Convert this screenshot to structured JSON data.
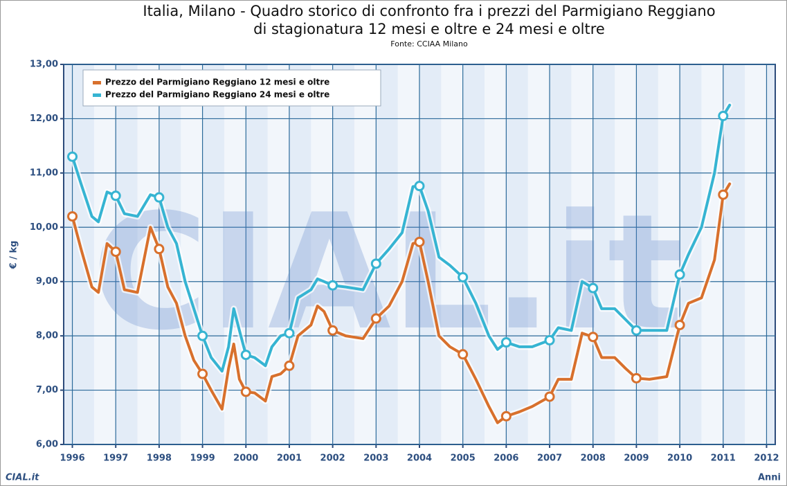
{
  "chart_data": {
    "type": "line",
    "title": [
      "Italia, Milano - Quadro storico di confronto fra i prezzi del Parmigiano Reggiano",
      "di stagionatura 12 mesi e oltre e 24 mesi e oltre"
    ],
    "subtitle": "Fonte: CCIAA Milano",
    "y_label": "€ / kg",
    "x_label": "Anni",
    "logo": "CIAL.it",
    "legend": "top-left",
    "grid": true,
    "xlim": [
      1995.8,
      2012.2
    ],
    "xticks": [
      1996,
      1997,
      1998,
      1999,
      2000,
      2001,
      2002,
      2003,
      2004,
      2005,
      2006,
      2007,
      2008,
      2009,
      2010,
      2011,
      2012
    ],
    "ylim": [
      6,
      13
    ],
    "yticks": [
      {
        "value": 6,
        "label": "6,00"
      },
      {
        "value": 7,
        "label": "7,00"
      },
      {
        "value": 8,
        "label": "8,00"
      },
      {
        "value": 9,
        "label": "9,00"
      },
      {
        "value": 10,
        "label": "10,00"
      },
      {
        "value": 11,
        "label": "11,00"
      },
      {
        "value": 12,
        "label": "12,00"
      },
      {
        "value": 13,
        "label": "13,00"
      }
    ],
    "x": [
      1996.0,
      1996.2,
      1996.45,
      1996.6,
      1996.8,
      1997.0,
      1997.2,
      1997.5,
      1997.8,
      1998.0,
      1998.2,
      1998.4,
      1998.6,
      1998.8,
      1999.0,
      1999.2,
      1999.45,
      1999.6,
      1999.72,
      1999.85,
      2000.0,
      2000.2,
      2000.45,
      2000.6,
      2000.8,
      2001.0,
      2001.2,
      2001.5,
      2001.65,
      2001.8,
      2002.0,
      2002.3,
      2002.7,
      2003.0,
      2003.3,
      2003.6,
      2003.85,
      2004.0,
      2004.2,
      2004.45,
      2004.7,
      2005.0,
      2005.3,
      2005.6,
      2005.8,
      2006.0,
      2006.3,
      2006.6,
      2007.0,
      2007.2,
      2007.5,
      2007.75,
      2008.0,
      2008.2,
      2008.5,
      2008.75,
      2009.0,
      2009.3,
      2009.7,
      2010.0,
      2010.2,
      2010.5,
      2010.8,
      2011.0,
      2011.15
    ],
    "series": [
      {
        "name": "Prezzo del Parmigiano Reggiano 12 mesi e oltre",
        "color": "#d8702c",
        "values": [
          10.2,
          9.6,
          8.9,
          8.8,
          9.7,
          9.55,
          8.85,
          8.8,
          10.0,
          9.6,
          8.9,
          8.6,
          8.0,
          7.55,
          7.3,
          7.0,
          6.65,
          7.4,
          7.85,
          7.2,
          6.97,
          6.95,
          6.8,
          7.25,
          7.3,
          7.45,
          8.0,
          8.2,
          8.55,
          8.45,
          8.1,
          8.0,
          7.95,
          8.32,
          8.55,
          9.0,
          9.7,
          9.73,
          9.0,
          8.0,
          7.8,
          7.66,
          7.2,
          6.7,
          6.4,
          6.52,
          6.6,
          6.7,
          6.88,
          7.2,
          7.2,
          8.05,
          7.98,
          7.6,
          7.6,
          7.4,
          7.22,
          7.2,
          7.25,
          8.2,
          8.6,
          8.7,
          9.4,
          10.6,
          10.8
        ]
      },
      {
        "name": "Prezzo del Parmigiano Reggiano 24 mesi e oltre",
        "color": "#36b4d2",
        "values": [
          11.3,
          10.8,
          10.2,
          10.1,
          10.65,
          10.58,
          10.25,
          10.2,
          10.6,
          10.55,
          10.0,
          9.7,
          9.0,
          8.5,
          8.0,
          7.6,
          7.35,
          7.8,
          8.5,
          8.1,
          7.65,
          7.6,
          7.45,
          7.8,
          8.0,
          8.05,
          8.7,
          8.85,
          9.05,
          9.0,
          8.93,
          8.9,
          8.85,
          9.33,
          9.6,
          9.9,
          10.75,
          10.76,
          10.3,
          9.45,
          9.3,
          9.08,
          8.6,
          8.0,
          7.75,
          7.88,
          7.8,
          7.8,
          7.92,
          8.15,
          8.1,
          9.0,
          8.88,
          8.5,
          8.5,
          8.3,
          8.1,
          8.1,
          8.1,
          9.13,
          9.5,
          10.0,
          11.0,
          12.05,
          12.25
        ]
      }
    ]
  }
}
